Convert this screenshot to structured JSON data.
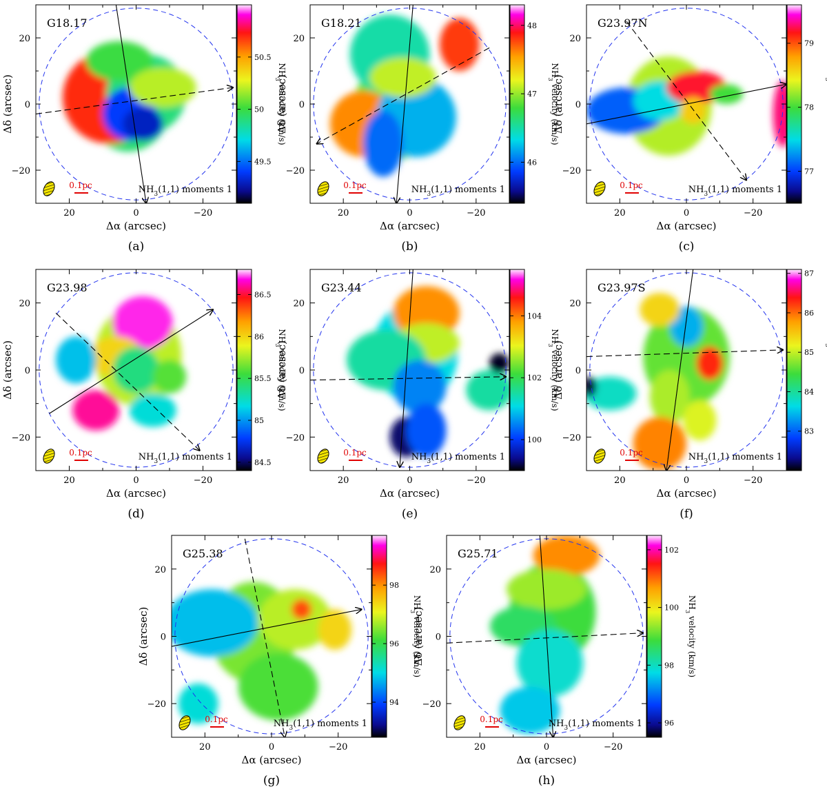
{
  "figure": {
    "common": {
      "xlabel": "Δα (arcsec)",
      "ylabel": "Δδ (arcsec)",
      "xticks": [
        20,
        0,
        -20
      ],
      "yticks": [
        20,
        0,
        -20
      ],
      "xlim": [
        30,
        -30
      ],
      "ylim": [
        -30,
        30
      ],
      "colorbar_label": "NH3 velocity (km/s)",
      "scale_bar": "0.1pc",
      "moment_label": "NH3(1,1) moments 1",
      "primary_beam_radius_arcsec": 29
    }
  },
  "chart_data": [
    {
      "type": "heatmap",
      "panel": "(a)",
      "source": "G18.17",
      "vrange": [
        49.1,
        51.0
      ],
      "cbar_ticks": [
        49.5,
        50,
        50.5
      ],
      "arrow_solid": {
        "from": [
          6,
          30
        ],
        "to": [
          -3,
          -30
        ]
      },
      "arrow_dashed": {
        "from": [
          30,
          -3
        ],
        "to": [
          -29,
          5
        ]
      },
      "blobs": [
        [
          8,
          2,
          14,
          14,
          50.7
        ],
        [
          -3,
          3,
          12,
          12,
          49.9
        ],
        [
          2,
          -3,
          8,
          8,
          49.4
        ],
        [
          5,
          13,
          10,
          6,
          50.0
        ],
        [
          -8,
          5,
          10,
          6,
          50.2
        ],
        [
          -2,
          -6,
          6,
          5,
          49.3
        ]
      ]
    },
    {
      "type": "heatmap",
      "panel": "(b)",
      "source": "G18.21",
      "vrange": [
        45.4,
        48.3
      ],
      "cbar_ticks": [
        46,
        47,
        48
      ],
      "arrow_solid": {
        "from": [
          -1,
          30
        ],
        "to": [
          4,
          -30
        ]
      },
      "arrow_dashed": {
        "from": [
          -24,
          17
        ],
        "to": [
          28,
          -12
        ]
      },
      "blobs": [
        [
          14,
          -6,
          10,
          10,
          47.6
        ],
        [
          6,
          15,
          12,
          12,
          46.5
        ],
        [
          -2,
          -4,
          12,
          12,
          46.2
        ],
        [
          -15,
          18,
          6,
          8,
          47.8
        ],
        [
          8,
          -12,
          6,
          10,
          46.0
        ],
        [
          2,
          8,
          10,
          6,
          47.1
        ]
      ]
    },
    {
      "type": "heatmap",
      "panel": "(c)",
      "source": "G23.97N",
      "vrange": [
        76.5,
        79.6
      ],
      "cbar_ticks": [
        77,
        78,
        79
      ],
      "arrow_solid": {
        "from": [
          30,
          -6
        ],
        "to": [
          -30,
          6
        ]
      },
      "arrow_dashed": {
        "from": [
          18,
          25
        ],
        "to": [
          -18,
          -23
        ]
      },
      "blobs": [
        [
          18,
          -2,
          12,
          7,
          77.1
        ],
        [
          8,
          1,
          8,
          6,
          77.5
        ],
        [
          -3,
          5,
          9,
          5,
          79.2
        ],
        [
          -2,
          -2,
          4,
          4,
          78.6
        ],
        [
          -12,
          3,
          5,
          3,
          78.0
        ],
        [
          -29,
          -3,
          3,
          10,
          79.3
        ]
      ]
    },
    {
      "type": "heatmap",
      "panel": "(d)",
      "source": "G23.98",
      "vrange": [
        84.4,
        86.8
      ],
      "cbar_ticks": [
        84.5,
        85,
        85.5,
        86,
        86.5
      ],
      "arrow_solid": {
        "from": [
          26,
          -13
        ],
        "to": [
          -23,
          18
        ]
      },
      "arrow_dashed": {
        "from": [
          24,
          17
        ],
        "to": [
          -19,
          -24
        ]
      },
      "blobs": [
        [
          -2,
          14,
          9,
          8,
          86.7
        ],
        [
          6,
          4,
          8,
          6,
          86.0
        ],
        [
          0,
          0,
          7,
          7,
          85.4
        ],
        [
          12,
          -12,
          7,
          6,
          86.6
        ],
        [
          -5,
          -12,
          7,
          5,
          85.2
        ],
        [
          18,
          3,
          6,
          7,
          85.1
        ],
        [
          -10,
          -2,
          5,
          5,
          85.6
        ]
      ]
    },
    {
      "type": "heatmap",
      "panel": "(e)",
      "source": "G23.44",
      "vrange": [
        99.0,
        105.5
      ],
      "cbar_ticks": [
        100,
        102,
        104
      ],
      "arrow_solid": {
        "from": [
          -1,
          30
        ],
        "to": [
          3,
          -29
        ]
      },
      "arrow_dashed": {
        "from": [
          30,
          -3
        ],
        "to": [
          -29,
          -2
        ]
      },
      "blobs": [
        [
          -5,
          17,
          10,
          8,
          103.9
        ],
        [
          -5,
          8,
          10,
          6,
          102.8
        ],
        [
          7,
          3,
          12,
          9,
          101.5
        ],
        [
          -3,
          -5,
          8,
          8,
          100.5
        ],
        [
          1,
          -20,
          5,
          6,
          99.3
        ],
        [
          -5,
          -18,
          6,
          8,
          100.2
        ],
        [
          -24,
          -6,
          7,
          6,
          101.5
        ],
        [
          -27,
          2,
          3,
          3,
          99.1
        ]
      ]
    },
    {
      "type": "heatmap",
      "panel": "(f)",
      "source": "G23.97S",
      "vrange": [
        82.0,
        87.1
      ],
      "cbar_ticks": [
        83,
        84,
        85,
        86,
        87
      ],
      "arrow_solid": {
        "from": [
          -2,
          30
        ],
        "to": [
          6,
          -30
        ]
      },
      "arrow_dashed": {
        "from": [
          30,
          4
        ],
        "to": [
          -29,
          6
        ]
      },
      "blobs": [
        [
          0,
          13,
          5,
          6,
          83.4
        ],
        [
          -7,
          2,
          4,
          5,
          86.3
        ],
        [
          5,
          -8,
          6,
          8,
          84.9
        ],
        [
          8,
          -22,
          8,
          8,
          85.9
        ],
        [
          23,
          -7,
          8,
          5,
          83.8
        ],
        [
          -4,
          -15,
          5,
          6,
          85.1
        ],
        [
          8,
          18,
          6,
          5,
          85.4
        ],
        [
          29,
          -5,
          2,
          3,
          82.1
        ]
      ]
    },
    {
      "type": "heatmap",
      "panel": "(g)",
      "source": "G25.38",
      "vrange": [
        92.8,
        99.7
      ],
      "cbar_ticks": [
        94,
        96,
        98
      ],
      "arrow_solid": {
        "from": [
          30,
          -3
        ],
        "to": [
          -27,
          8
        ]
      },
      "arrow_dashed": {
        "from": [
          8,
          29
        ],
        "to": [
          -4,
          -30
        ]
      },
      "blobs": [
        [
          18,
          4,
          14,
          10,
          94.8
        ],
        [
          -7,
          5,
          11,
          9,
          96.8
        ],
        [
          -9,
          8,
          3,
          3,
          98.4
        ],
        [
          -19,
          2,
          5,
          6,
          97.4
        ],
        [
          -2,
          -15,
          12,
          10,
          96.2
        ],
        [
          22,
          -20,
          6,
          6,
          95.1
        ]
      ]
    },
    {
      "type": "heatmap",
      "panel": "(h)",
      "source": "G25.71",
      "vrange": [
        95.5,
        102.5
      ],
      "cbar_ticks": [
        96,
        98,
        100,
        102
      ],
      "arrow_solid": {
        "from": [
          2,
          30
        ],
        "to": [
          -2,
          -30
        ]
      },
      "arrow_dashed": {
        "from": [
          30,
          -2
        ],
        "to": [
          -29,
          1
        ]
      },
      "blobs": [
        [
          -6,
          24,
          10,
          6,
          100.8
        ],
        [
          0,
          14,
          12,
          6,
          99.4
        ],
        [
          7,
          3,
          10,
          6,
          98.6
        ],
        [
          -1,
          -8,
          10,
          10,
          97.9
        ],
        [
          5,
          -22,
          9,
          7,
          97.6
        ]
      ]
    }
  ]
}
